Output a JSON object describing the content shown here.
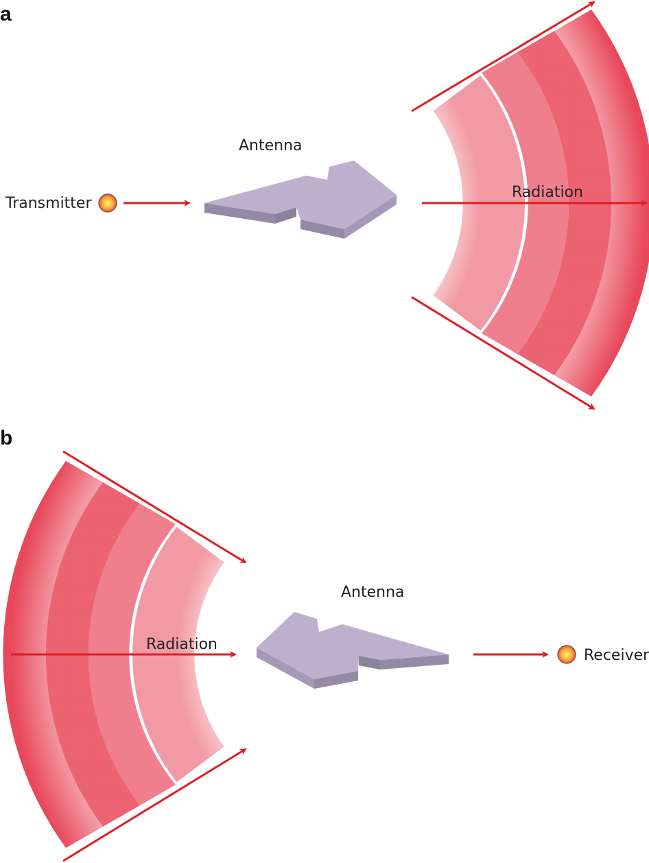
{
  "panel_a": {
    "letter": "a",
    "source_label": "Transmitter",
    "antenna_label": "Antenna",
    "radiation_label": "Radiation"
  },
  "panel_b": {
    "letter": "b",
    "antenna_label": "Antenna",
    "radiation_label": "Radiation",
    "sink_label": "Receiver"
  },
  "colors": {
    "arrow": "#e21b23",
    "wave": "#e8485a",
    "antenna_top": "#bdb0cc",
    "antenna_side": "#948aa6",
    "antenna_front": "#a699b8",
    "dot_center": "#fff36a",
    "dot_edge": "#f0504a"
  }
}
